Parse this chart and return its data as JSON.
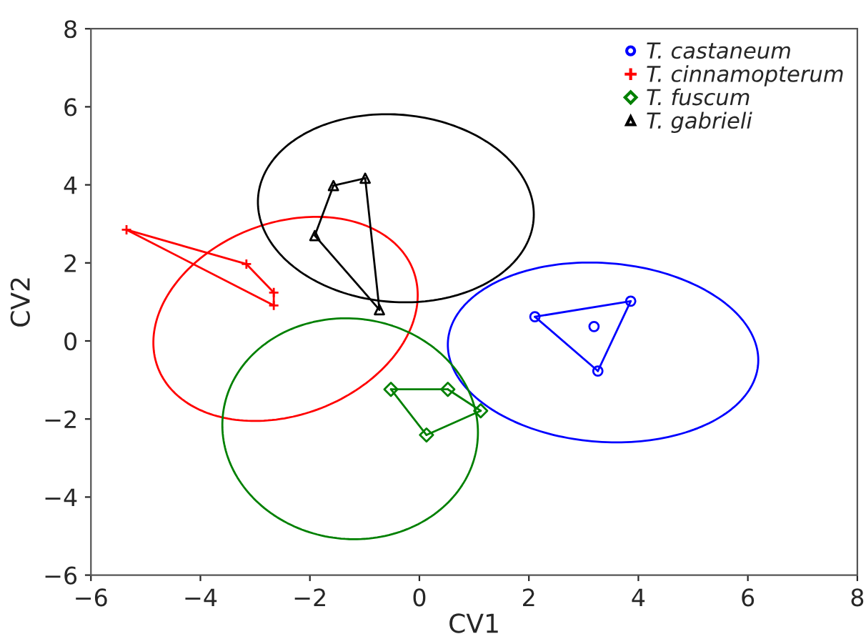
{
  "chart_data": {
    "type": "scatter",
    "xlabel": "CV1",
    "ylabel": "CV2",
    "xlim": [
      -6,
      8
    ],
    "ylim": [
      -6,
      8
    ],
    "xticks": [
      -6,
      -4,
      -2,
      0,
      2,
      4,
      6,
      8
    ],
    "yticks": [
      -6,
      -4,
      -2,
      0,
      2,
      4,
      6,
      8
    ],
    "grid": false,
    "legend": "top right",
    "series": [
      {
        "name": "T. castaneum",
        "color": "#0000ff",
        "marker": "circle",
        "x": [
          2.11,
          3.86,
          3.19,
          3.26
        ],
        "values": [
          0.62,
          1.02,
          0.37,
          -0.77
        ]
      },
      {
        "name": "T. cinnamopterum",
        "color": "#ff0000",
        "marker": "cross",
        "x": [
          -5.35,
          -3.16,
          -2.66,
          -2.66
        ],
        "values": [
          2.85,
          1.97,
          1.24,
          0.91
        ]
      },
      {
        "name": "T. fuscum",
        "color": "#008000",
        "marker": "diamond",
        "x": [
          -0.52,
          0.52,
          1.12,
          0.13
        ],
        "values": [
          -1.24,
          -1.24,
          -1.79,
          -2.41
        ]
      },
      {
        "name": "T. gabrieli",
        "color": "#000000",
        "marker": "triangle",
        "x": [
          -1.91,
          -1.57,
          -0.99,
          -0.73
        ],
        "values": [
          2.7,
          3.98,
          4.17,
          0.8
        ]
      },
      {
        "type": "line",
        "color": "#0000ff",
        "x": [
          2.11,
          3.86
        ],
        "values": [
          0.62,
          1.02
        ]
      },
      {
        "type": "line",
        "color": "#0000ff",
        "x": [
          3.26,
          3.86
        ],
        "values": [
          -0.77,
          1.02
        ]
      },
      {
        "type": "line",
        "color": "#0000ff",
        "x": [
          2.11,
          3.26
        ],
        "values": [
          0.62,
          -0.77
        ]
      },
      {
        "type": "line",
        "color": "#ff0000",
        "x": [
          -5.35,
          -3.16
        ],
        "values": [
          2.85,
          1.97
        ]
      },
      {
        "type": "line",
        "color": "#ff0000",
        "x": [
          -3.16,
          -2.66
        ],
        "values": [
          1.97,
          1.24
        ]
      },
      {
        "type": "line",
        "color": "#ff0000",
        "x": [
          -2.66,
          -2.66
        ],
        "values": [
          1.24,
          0.91
        ]
      },
      {
        "type": "line",
        "color": "#ff0000",
        "x": [
          -5.35,
          -2.66
        ],
        "values": [
          2.85,
          0.91
        ]
      },
      {
        "type": "line",
        "color": "#008000",
        "x": [
          -0.52,
          0.52
        ],
        "values": [
          -1.24,
          -1.24
        ]
      },
      {
        "type": "line",
        "color": "#008000",
        "x": [
          0.52,
          1.12
        ],
        "values": [
          -1.24,
          -1.79
        ]
      },
      {
        "type": "line",
        "color": "#008000",
        "x": [
          0.13,
          1.12
        ],
        "values": [
          -2.41,
          -1.79
        ]
      },
      {
        "type": "line",
        "color": "#008000",
        "x": [
          -0.52,
          0.13
        ],
        "values": [
          -1.24,
          -2.41
        ]
      },
      {
        "type": "line",
        "color": "#000000",
        "x": [
          -1.91,
          -1.57
        ],
        "values": [
          2.7,
          3.98
        ]
      },
      {
        "type": "line",
        "color": "#000000",
        "x": [
          -1.57,
          -0.99
        ],
        "values": [
          3.98,
          4.17
        ]
      },
      {
        "type": "line",
        "color": "#000000",
        "x": [
          -0.99,
          -0.73
        ],
        "values": [
          4.17,
          0.8
        ]
      },
      {
        "type": "line",
        "color": "#000000",
        "x": [
          -1.91,
          -0.73
        ],
        "values": [
          2.7,
          0.8
        ]
      }
    ]
  }
}
